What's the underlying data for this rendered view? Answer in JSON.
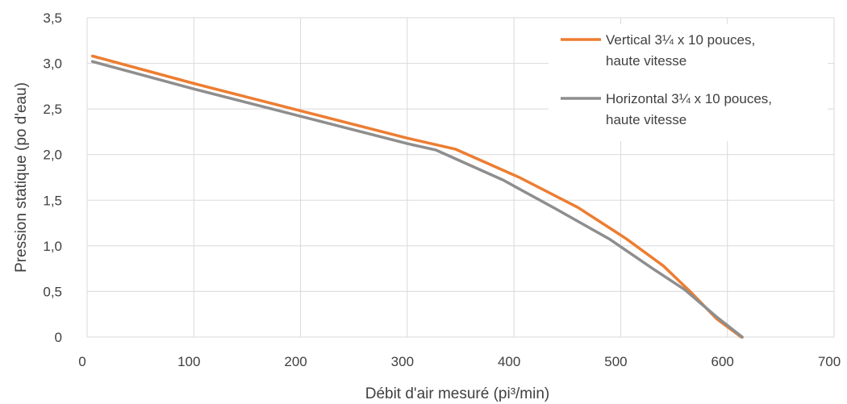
{
  "chart_data": {
    "type": "line",
    "title": "",
    "xlabel": "Débit d'air mesuré (pi³/min)",
    "ylabel": "Pression statique (po d'eau)",
    "xlim": [
      0,
      700
    ],
    "ylim": [
      0,
      3.5
    ],
    "x_ticks": [
      0,
      100,
      200,
      300,
      400,
      500,
      600,
      700
    ],
    "x_tick_labels": [
      "0",
      "100",
      "200",
      "300",
      "400",
      "500",
      "600",
      "700"
    ],
    "y_ticks": [
      0,
      0.5,
      1.0,
      1.5,
      2.0,
      2.5,
      3.0,
      3.5
    ],
    "y_tick_labels": [
      "0",
      "0,5",
      "1,0",
      "1,5",
      "2,0",
      "2,5",
      "3,0",
      "3,5"
    ],
    "grid": true,
    "legend_position": "top-right",
    "series": [
      {
        "name": "Vertical 3¼ x 10 pouces, haute vitesse",
        "legend_lines": [
          "Vertical 3¼ x 10 pouces,",
          "haute vitesse"
        ],
        "color": "#ED7D31",
        "points": [
          [
            5,
            3.08
          ],
          [
            100,
            2.78
          ],
          [
            200,
            2.48
          ],
          [
            300,
            2.18
          ],
          [
            345,
            2.06
          ],
          [
            405,
            1.75
          ],
          [
            460,
            1.42
          ],
          [
            505,
            1.08
          ],
          [
            540,
            0.78
          ],
          [
            565,
            0.5
          ],
          [
            590,
            0.2
          ],
          [
            613,
            0.0
          ]
        ]
      },
      {
        "name": "Horizontal 3¼ x 10 pouces, haute vitesse",
        "legend_lines": [
          "Horizontal 3¼ x 10 pouces,",
          "haute vitesse"
        ],
        "color": "#8E8E8E",
        "points": [
          [
            5,
            3.02
          ],
          [
            100,
            2.72
          ],
          [
            200,
            2.42
          ],
          [
            300,
            2.12
          ],
          [
            327,
            2.05
          ],
          [
            390,
            1.72
          ],
          [
            440,
            1.4
          ],
          [
            490,
            1.07
          ],
          [
            530,
            0.75
          ],
          [
            560,
            0.52
          ],
          [
            590,
            0.22
          ],
          [
            614,
            0.0
          ]
        ]
      }
    ]
  }
}
